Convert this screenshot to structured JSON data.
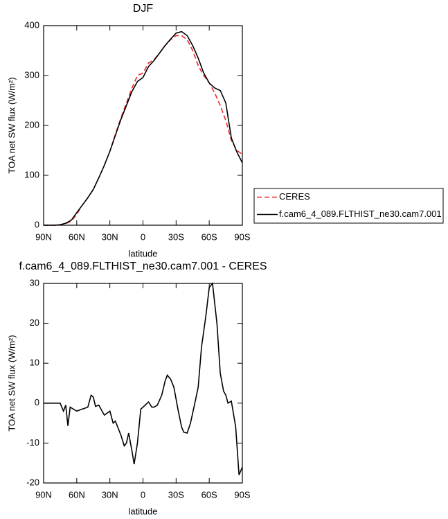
{
  "chart_data": [
    {
      "type": "line",
      "title": "DJF",
      "xlabel": "latitude",
      "ylabel": "TOA net SW flux (W/m²)",
      "x": [
        90,
        85,
        80,
        75,
        70,
        65,
        60,
        55,
        50,
        45,
        40,
        35,
        30,
        25,
        20,
        15,
        10,
        5,
        0,
        -5,
        -10,
        -15,
        -20,
        -25,
        -30,
        -35,
        -40,
        -45,
        -50,
        -55,
        -60,
        -65,
        -70,
        -75,
        -80,
        -85,
        -90
      ],
      "series": [
        {
          "name": "CERES",
          "color": "#e8262a",
          "line_style": "dashed",
          "values": [
            0,
            0,
            0,
            1,
            3,
            8,
            22,
            40,
            55,
            72,
            95,
            120,
            148,
            182,
            215,
            245,
            275,
            300,
            305,
            325,
            332,
            345,
            360,
            372,
            380,
            380,
            372,
            350,
            320,
            300,
            285,
            265,
            240,
            210,
            170,
            150,
            142
          ]
        },
        {
          "name": "f.cam6_4_089.FLTHIST_ne30.cam7.001",
          "color": "#000000",
          "line_style": "solid",
          "values": [
            0,
            0,
            0,
            1,
            4,
            10,
            25,
            40,
            55,
            72,
            95,
            120,
            148,
            180,
            212,
            240,
            268,
            288,
            296,
            318,
            330,
            345,
            360,
            373,
            385,
            388,
            380,
            360,
            335,
            305,
            285,
            275,
            270,
            245,
            175,
            147,
            125
          ]
        }
      ],
      "xlim": [
        90,
        -90
      ],
      "ylim": [
        0,
        400
      ],
      "xticks": [
        {
          "value": 90,
          "label": "90N"
        },
        {
          "value": 60,
          "label": "60N"
        },
        {
          "value": 30,
          "label": "30N"
        },
        0,
        {
          "value": -30,
          "label": "30S"
        },
        {
          "value": -60,
          "label": "60S"
        },
        {
          "value": -90,
          "label": "90S"
        }
      ],
      "yticks": [
        0,
        100,
        200,
        300,
        400
      ],
      "legend": "right"
    },
    {
      "type": "line",
      "title": "f.cam6_4_089.FLTHIST_ne30.cam7.001 - CERES",
      "xlabel": "latitude",
      "ylabel": "TOA net SW flux (W/m²)",
      "x": [
        90,
        85,
        80,
        75,
        72,
        70,
        68,
        66,
        60,
        55,
        50,
        47,
        45,
        43,
        40,
        35,
        30,
        27,
        25,
        20,
        17,
        15,
        13,
        10,
        8,
        5,
        2,
        0,
        -5,
        -8,
        -10,
        -13,
        -17,
        -20,
        -22,
        -25,
        -28,
        -32,
        -35,
        -37,
        -40,
        -43,
        -47,
        -50,
        -53,
        -57,
        -60,
        -63,
        -67,
        -70,
        -73,
        -75,
        -77,
        -80,
        -84,
        -87,
        -90
      ],
      "series": [
        {
          "name": "f.cam6_4_089.FLTHIST_ne30.cam7.001 - CERES",
          "color": "#000000",
          "line_style": "solid",
          "values": [
            0,
            0,
            0,
            0,
            -2,
            -0.5,
            -5.7,
            -1,
            -2,
            -1.5,
            -1,
            2,
            1.5,
            -0.8,
            -0.5,
            -3,
            -2,
            -5,
            -4.5,
            -8,
            -10.7,
            -10,
            -7.5,
            -12,
            -15.3,
            -10,
            -1.5,
            -1,
            0.3,
            -1,
            -1,
            -0.5,
            2,
            5.5,
            7,
            6,
            4,
            -2,
            -6,
            -7.3,
            -7.5,
            -5,
            0,
            4,
            14,
            22,
            29,
            30,
            20,
            7.5,
            3,
            2,
            0,
            0.5,
            -6,
            -18,
            -16
          ]
        }
      ],
      "xlim": [
        90,
        -90
      ],
      "ylim": [
        -20,
        30
      ],
      "xticks": [
        {
          "value": 90,
          "label": "90N"
        },
        {
          "value": 60,
          "label": "60N"
        },
        {
          "value": 30,
          "label": "30N"
        },
        0,
        {
          "value": -30,
          "label": "30S"
        },
        {
          "value": -60,
          "label": "60S"
        },
        {
          "value": -90,
          "label": "90S"
        }
      ],
      "yticks": [
        -20,
        -10,
        0,
        10,
        20,
        30
      ]
    }
  ]
}
